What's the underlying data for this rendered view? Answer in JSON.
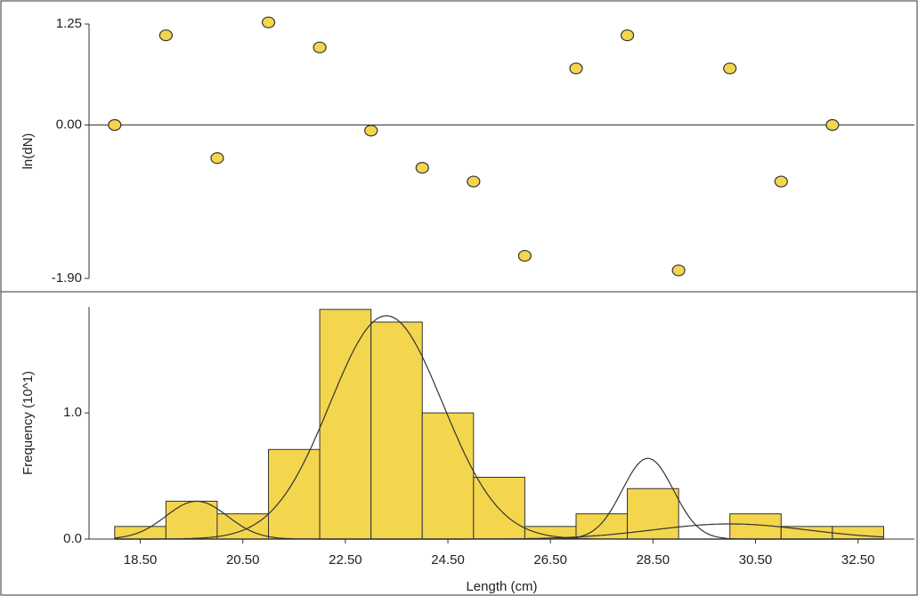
{
  "chart_data": [
    {
      "type": "scatter",
      "ylabel": "ln(dN)",
      "x": [
        18,
        19,
        20,
        21,
        22,
        23,
        24,
        25,
        26,
        27,
        28,
        29,
        30,
        31,
        32
      ],
      "values": [
        0.0,
        1.11,
        -0.41,
        1.27,
        0.96,
        -0.07,
        -0.53,
        -0.7,
        -1.62,
        0.7,
        1.11,
        -1.8,
        0.7,
        -0.7,
        0.0
      ],
      "color": "#f3d64e",
      "xlim": [
        17.5,
        33.6
      ],
      "ylim": [
        -1.9,
        1.25
      ],
      "yticks": [
        {
          "value": 1.25,
          "label": "1.25"
        },
        {
          "value": 0,
          "label": "0.00"
        },
        {
          "value": -1.9,
          "label": "-1.90"
        }
      ],
      "zero_line": true
    },
    {
      "type": "histogram",
      "xlabel": "Length (cm)",
      "ylabel": "Frequency (10^1)",
      "bins": [
        18,
        19,
        20,
        21,
        22,
        23,
        24,
        25,
        26,
        27,
        28,
        29,
        30,
        31,
        32,
        33
      ],
      "values": [
        0.1,
        0.3,
        0.2,
        0.71,
        1.82,
        1.72,
        1.0,
        0.49,
        0.1,
        0.2,
        0.4,
        0,
        0.2,
        0.1,
        0.1
      ],
      "color": "#f3d64e",
      "components": [
        {
          "mean": 19.6,
          "sd": 0.6,
          "peak": 0.3
        },
        {
          "mean": 23.3,
          "sd": 1.1,
          "peak": 1.77
        },
        {
          "mean": 28.4,
          "sd": 0.5,
          "peak": 0.64
        },
        {
          "mean": 30.0,
          "sd": 1.5,
          "peak": 0.12
        }
      ],
      "xlim": [
        17.5,
        33.6
      ],
      "ylim": [
        0,
        1.84
      ],
      "xticks": [
        {
          "value": 18.5,
          "label": "18.50"
        },
        {
          "value": 20.5,
          "label": "20.50"
        },
        {
          "value": 22.5,
          "label": "22.50"
        },
        {
          "value": 24.5,
          "label": "24.50"
        },
        {
          "value": 26.5,
          "label": "26.50"
        },
        {
          "value": 28.5,
          "label": "28.50"
        },
        {
          "value": 30.5,
          "label": "30.50"
        },
        {
          "value": 32.5,
          "label": "32.50"
        }
      ],
      "yticks": [
        {
          "value": 0,
          "label": "0.0"
        },
        {
          "value": 1,
          "label": "1.0"
        }
      ]
    }
  ]
}
